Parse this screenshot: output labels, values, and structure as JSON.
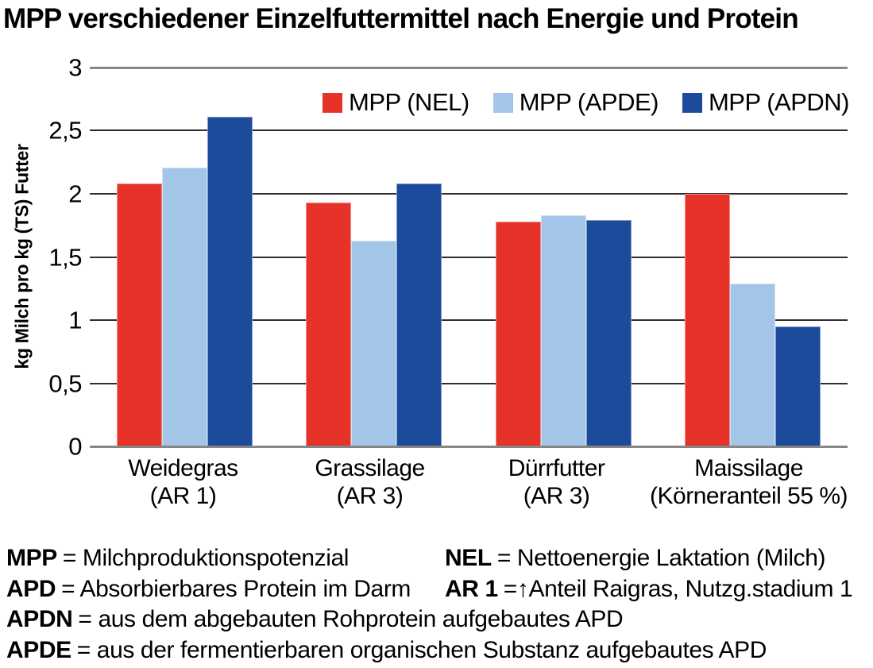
{
  "page": {
    "background": "#ffffff",
    "text_color": "#000000"
  },
  "chart_data": {
    "type": "bar",
    "title": "MPP verschiedener Einzelfuttermittel nach Energie und Protein",
    "ylabel": "kg Milch pro kg (TS) Futter",
    "xlabel": "",
    "ylim": [
      0,
      3
    ],
    "ytick_step": 0.5,
    "ytick_labels": [
      "3",
      "2,5",
      "2",
      "1,5",
      "1",
      "0,5",
      "0"
    ],
    "decimal_separator": ",",
    "grid": true,
    "legend_position": "top-inside",
    "axis_color": "#868686",
    "gridline_color": "#2e2e2e",
    "categories": [
      {
        "label": "Weidegras",
        "sub": "(AR 1)"
      },
      {
        "label": "Grassilage",
        "sub": "(AR 3)"
      },
      {
        "label": "Dürrfutter",
        "sub": "(AR 3)"
      },
      {
        "label": "Maissilage",
        "sub": "(Körneranteil 55 %)"
      }
    ],
    "series": [
      {
        "name": "MPP (NEL)",
        "color": "#e63229",
        "values": [
          2.08,
          1.93,
          1.78,
          2.0
        ]
      },
      {
        "name": "MPP (APDE)",
        "color": "#a3c6e8",
        "values": [
          2.21,
          1.63,
          1.83,
          1.29
        ]
      },
      {
        "name": "MPP (APDN)",
        "color": "#1c4b9c",
        "values": [
          2.61,
          2.08,
          1.79,
          0.95
        ]
      }
    ]
  },
  "footnotes": [
    {
      "term": "MPP",
      "def": "= Milchproduktionspotenzial"
    },
    {
      "term": "NEL",
      "def": "= Nettoenergie Laktation (Milch)"
    },
    {
      "term": "APD",
      "def": "= Absorbierbares Protein im Darm"
    },
    {
      "term": "AR 1",
      "def": "=↑Anteil Raigras, Nutzg.stadium 1"
    },
    {
      "term": "APDN",
      "def": "= aus dem abgebauten Rohprotein aufgebautes APD"
    },
    {
      "term": "APDE",
      "def": "= aus der fermentierbaren organischen Substanz aufgebautes APD"
    }
  ]
}
